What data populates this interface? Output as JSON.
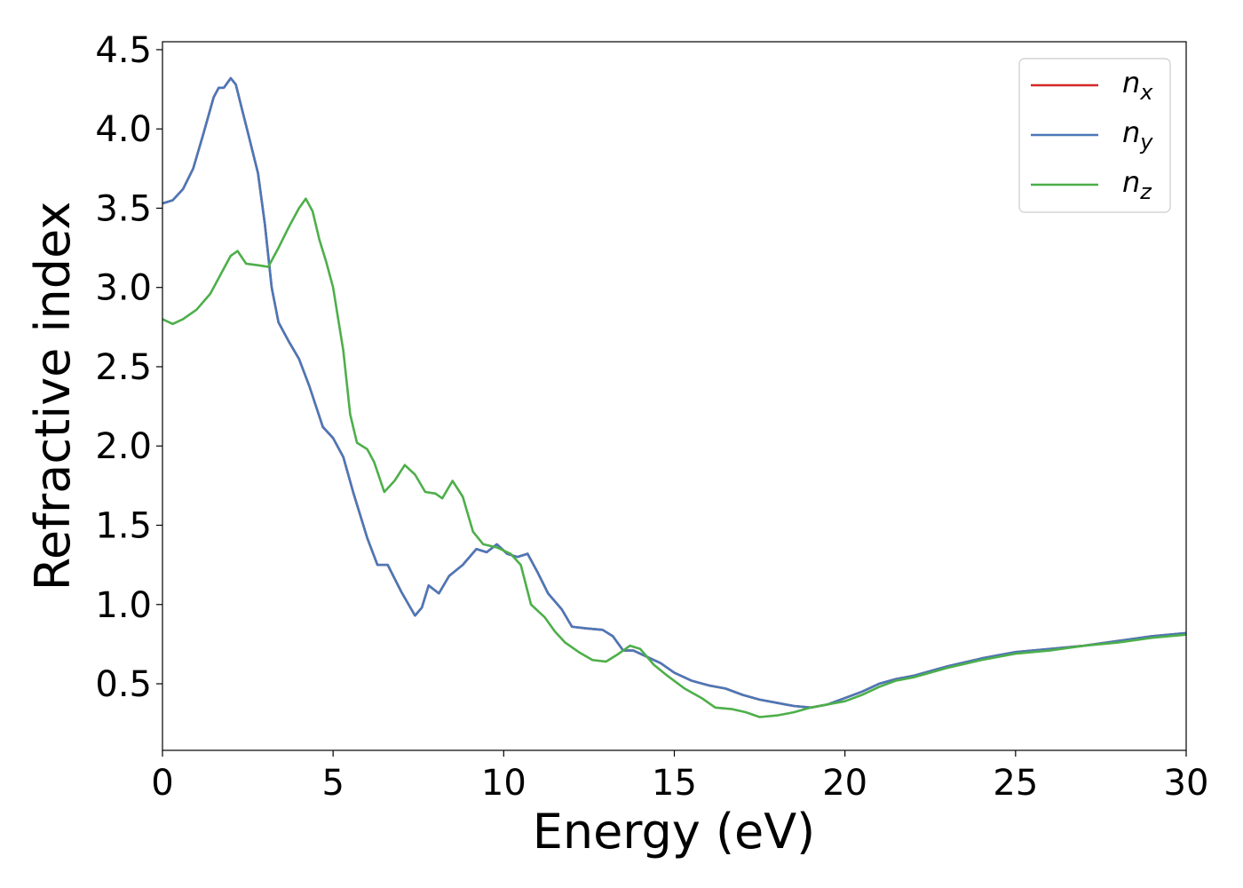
{
  "chart_data": {
    "type": "line",
    "title": "",
    "xlabel": "Energy (eV)",
    "ylabel": "Refractive index",
    "xlim": [
      0,
      30
    ],
    "ylim": [
      0.08,
      4.55
    ],
    "xticks": [
      0,
      5,
      10,
      15,
      20,
      25,
      30
    ],
    "yticks": [
      0.5,
      1.0,
      1.5,
      2.0,
      2.5,
      3.0,
      3.5,
      4.0,
      4.5
    ],
    "xtick_labels": [
      "0",
      "5",
      "10",
      "15",
      "20",
      "25",
      "30"
    ],
    "ytick_labels": [
      "0.5",
      "1.0",
      "1.5",
      "2.0",
      "2.5",
      "3.0",
      "3.5",
      "4.0",
      "4.5"
    ],
    "grid": false,
    "legend_position": "top-right",
    "series": [
      {
        "name": "n",
        "subscript": "x",
        "color": "#d62728",
        "points": [
          [
            0,
            3.53
          ],
          [
            0.3,
            3.55
          ],
          [
            0.6,
            3.62
          ],
          [
            0.9,
            3.75
          ],
          [
            1.2,
            3.97
          ],
          [
            1.5,
            4.2
          ],
          [
            1.65,
            4.26
          ],
          [
            1.8,
            4.26
          ],
          [
            2.0,
            4.32
          ],
          [
            2.15,
            4.28
          ],
          [
            2.3,
            4.15
          ],
          [
            2.5,
            3.98
          ],
          [
            2.8,
            3.72
          ],
          [
            3.0,
            3.4
          ],
          [
            3.2,
            3.0
          ],
          [
            3.4,
            2.78
          ],
          [
            3.7,
            2.66
          ],
          [
            4.0,
            2.55
          ],
          [
            4.3,
            2.38
          ],
          [
            4.5,
            2.25
          ],
          [
            4.7,
            2.12
          ],
          [
            5.0,
            2.05
          ],
          [
            5.3,
            1.93
          ],
          [
            5.6,
            1.7
          ],
          [
            6.0,
            1.42
          ],
          [
            6.3,
            1.25
          ],
          [
            6.6,
            1.25
          ],
          [
            7.0,
            1.08
          ],
          [
            7.4,
            0.93
          ],
          [
            7.6,
            0.98
          ],
          [
            7.8,
            1.12
          ],
          [
            8.1,
            1.07
          ],
          [
            8.4,
            1.18
          ],
          [
            8.8,
            1.25
          ],
          [
            9.2,
            1.35
          ],
          [
            9.5,
            1.33
          ],
          [
            9.8,
            1.38
          ],
          [
            10.1,
            1.32
          ],
          [
            10.4,
            1.3
          ],
          [
            10.7,
            1.32
          ],
          [
            11.0,
            1.2
          ],
          [
            11.3,
            1.07
          ],
          [
            11.7,
            0.97
          ],
          [
            12.0,
            0.86
          ],
          [
            12.4,
            0.85
          ],
          [
            12.9,
            0.84
          ],
          [
            13.2,
            0.8
          ],
          [
            13.5,
            0.71
          ],
          [
            13.8,
            0.71
          ],
          [
            14.2,
            0.67
          ],
          [
            14.6,
            0.63
          ],
          [
            15.0,
            0.57
          ],
          [
            15.5,
            0.52
          ],
          [
            16.0,
            0.49
          ],
          [
            16.5,
            0.47
          ],
          [
            17.0,
            0.43
          ],
          [
            17.5,
            0.4
          ],
          [
            18.0,
            0.38
          ],
          [
            18.5,
            0.36
          ],
          [
            19.0,
            0.35
          ],
          [
            19.5,
            0.37
          ],
          [
            20.0,
            0.41
          ],
          [
            20.5,
            0.45
          ],
          [
            21.0,
            0.5
          ],
          [
            21.5,
            0.53
          ],
          [
            22.0,
            0.55
          ],
          [
            23.0,
            0.61
          ],
          [
            24.0,
            0.66
          ],
          [
            25.0,
            0.7
          ],
          [
            26.0,
            0.72
          ],
          [
            27.0,
            0.74
          ],
          [
            28.0,
            0.77
          ],
          [
            29.0,
            0.8
          ],
          [
            30.0,
            0.82
          ]
        ]
      },
      {
        "name": "n",
        "subscript": "y",
        "color": "#4a78b8",
        "points": [
          [
            0,
            3.53
          ],
          [
            0.3,
            3.55
          ],
          [
            0.6,
            3.62
          ],
          [
            0.9,
            3.75
          ],
          [
            1.2,
            3.97
          ],
          [
            1.5,
            4.2
          ],
          [
            1.65,
            4.26
          ],
          [
            1.8,
            4.26
          ],
          [
            2.0,
            4.32
          ],
          [
            2.15,
            4.28
          ],
          [
            2.3,
            4.15
          ],
          [
            2.5,
            3.98
          ],
          [
            2.8,
            3.72
          ],
          [
            3.0,
            3.4
          ],
          [
            3.2,
            3.0
          ],
          [
            3.4,
            2.78
          ],
          [
            3.7,
            2.66
          ],
          [
            4.0,
            2.55
          ],
          [
            4.3,
            2.38
          ],
          [
            4.5,
            2.25
          ],
          [
            4.7,
            2.12
          ],
          [
            5.0,
            2.05
          ],
          [
            5.3,
            1.93
          ],
          [
            5.6,
            1.7
          ],
          [
            6.0,
            1.42
          ],
          [
            6.3,
            1.25
          ],
          [
            6.6,
            1.25
          ],
          [
            7.0,
            1.08
          ],
          [
            7.4,
            0.93
          ],
          [
            7.6,
            0.98
          ],
          [
            7.8,
            1.12
          ],
          [
            8.1,
            1.07
          ],
          [
            8.4,
            1.18
          ],
          [
            8.8,
            1.25
          ],
          [
            9.2,
            1.35
          ],
          [
            9.5,
            1.33
          ],
          [
            9.8,
            1.38
          ],
          [
            10.1,
            1.32
          ],
          [
            10.4,
            1.3
          ],
          [
            10.7,
            1.32
          ],
          [
            11.0,
            1.2
          ],
          [
            11.3,
            1.07
          ],
          [
            11.7,
            0.97
          ],
          [
            12.0,
            0.86
          ],
          [
            12.4,
            0.85
          ],
          [
            12.9,
            0.84
          ],
          [
            13.2,
            0.8
          ],
          [
            13.5,
            0.71
          ],
          [
            13.8,
            0.71
          ],
          [
            14.2,
            0.67
          ],
          [
            14.6,
            0.63
          ],
          [
            15.0,
            0.57
          ],
          [
            15.5,
            0.52
          ],
          [
            16.0,
            0.49
          ],
          [
            16.5,
            0.47
          ],
          [
            17.0,
            0.43
          ],
          [
            17.5,
            0.4
          ],
          [
            18.0,
            0.38
          ],
          [
            18.5,
            0.36
          ],
          [
            19.0,
            0.35
          ],
          [
            19.5,
            0.37
          ],
          [
            20.0,
            0.41
          ],
          [
            20.5,
            0.45
          ],
          [
            21.0,
            0.5
          ],
          [
            21.5,
            0.53
          ],
          [
            22.0,
            0.55
          ],
          [
            23.0,
            0.61
          ],
          [
            24.0,
            0.66
          ],
          [
            25.0,
            0.7
          ],
          [
            26.0,
            0.72
          ],
          [
            27.0,
            0.74
          ],
          [
            28.0,
            0.77
          ],
          [
            29.0,
            0.8
          ],
          [
            30.0,
            0.82
          ]
        ]
      },
      {
        "name": "n",
        "subscript": "z",
        "color": "#4daf4a",
        "points": [
          [
            0,
            2.8
          ],
          [
            0.3,
            2.77
          ],
          [
            0.6,
            2.8
          ],
          [
            1.0,
            2.86
          ],
          [
            1.4,
            2.96
          ],
          [
            1.8,
            3.12
          ],
          [
            2.0,
            3.2
          ],
          [
            2.2,
            3.23
          ],
          [
            2.45,
            3.15
          ],
          [
            2.8,
            3.14
          ],
          [
            3.1,
            3.13
          ],
          [
            3.4,
            3.25
          ],
          [
            3.7,
            3.38
          ],
          [
            4.0,
            3.5
          ],
          [
            4.2,
            3.56
          ],
          [
            4.4,
            3.48
          ],
          [
            4.6,
            3.3
          ],
          [
            4.8,
            3.16
          ],
          [
            5.0,
            3.0
          ],
          [
            5.3,
            2.6
          ],
          [
            5.5,
            2.2
          ],
          [
            5.7,
            2.02
          ],
          [
            6.0,
            1.98
          ],
          [
            6.2,
            1.9
          ],
          [
            6.5,
            1.71
          ],
          [
            6.8,
            1.78
          ],
          [
            7.1,
            1.88
          ],
          [
            7.4,
            1.82
          ],
          [
            7.7,
            1.71
          ],
          [
            8.0,
            1.7
          ],
          [
            8.2,
            1.67
          ],
          [
            8.5,
            1.78
          ],
          [
            8.8,
            1.68
          ],
          [
            9.1,
            1.46
          ],
          [
            9.4,
            1.38
          ],
          [
            9.8,
            1.36
          ],
          [
            10.2,
            1.32
          ],
          [
            10.5,
            1.25
          ],
          [
            10.8,
            1.0
          ],
          [
            11.2,
            0.92
          ],
          [
            11.5,
            0.83
          ],
          [
            11.8,
            0.76
          ],
          [
            12.2,
            0.7
          ],
          [
            12.6,
            0.65
          ],
          [
            13.0,
            0.64
          ],
          [
            13.3,
            0.68
          ],
          [
            13.7,
            0.74
          ],
          [
            14.0,
            0.72
          ],
          [
            14.4,
            0.62
          ],
          [
            14.8,
            0.55
          ],
          [
            15.3,
            0.47
          ],
          [
            15.8,
            0.41
          ],
          [
            16.2,
            0.35
          ],
          [
            16.7,
            0.34
          ],
          [
            17.1,
            0.32
          ],
          [
            17.5,
            0.29
          ],
          [
            18.0,
            0.3
          ],
          [
            18.5,
            0.32
          ],
          [
            19.0,
            0.35
          ],
          [
            19.5,
            0.37
          ],
          [
            20.0,
            0.39
          ],
          [
            20.5,
            0.43
          ],
          [
            21.0,
            0.48
          ],
          [
            21.5,
            0.52
          ],
          [
            22.0,
            0.54
          ],
          [
            23.0,
            0.6
          ],
          [
            24.0,
            0.65
          ],
          [
            25.0,
            0.69
          ],
          [
            26.0,
            0.71
          ],
          [
            27.0,
            0.74
          ],
          [
            28.0,
            0.76
          ],
          [
            29.0,
            0.79
          ],
          [
            30.0,
            0.81
          ]
        ]
      }
    ]
  }
}
